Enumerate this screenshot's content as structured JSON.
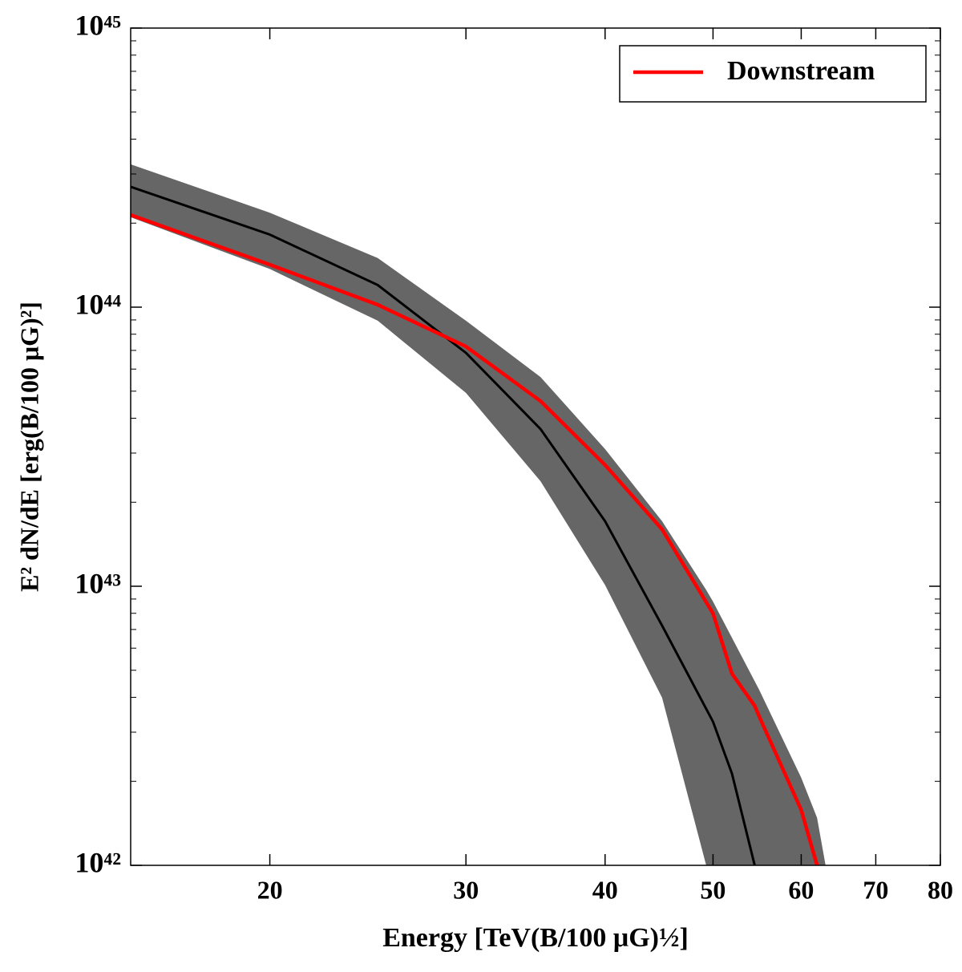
{
  "chart_data": {
    "type": "line",
    "xlabel": "Energy [TeV(B/100 μG)½]",
    "ylabel": "E² dN/dE [erg(B/100 μG)²]",
    "xlog": true,
    "ylog": true,
    "grid": false,
    "legend": "upper right",
    "xlim": [
      15,
      80
    ],
    "xticks": [
      20,
      30,
      40,
      50,
      60,
      70,
      80
    ],
    "ylim": [
      1e+42,
      1e+45
    ],
    "yticks": [
      {
        "value": 1e+42,
        "label": "10⁴²"
      },
      {
        "value": 1e+43,
        "label": "10⁴³"
      },
      {
        "value": 1e+44,
        "label": "10⁴⁴"
      },
      {
        "value": 1e+45,
        "label": "10⁴⁵"
      }
    ],
    "yminorticks": [
      2e+42,
      3e+42,
      4e+42,
      5e+42,
      6e+42,
      7e+42,
      8e+42,
      9e+42,
      2e+43,
      3e+43,
      4e+43,
      5e+43,
      6e+43,
      7e+43,
      8e+43,
      9e+43,
      2e+44,
      3e+44,
      4e+44,
      5e+44,
      6e+44,
      7e+44,
      8e+44,
      9e+44
    ],
    "band": {
      "color": "#666666",
      "x": [
        15,
        20,
        25,
        30,
        35,
        40,
        45,
        49.3,
        50,
        55,
        60,
        62,
        63.1
      ],
      "upper": [
        3.25e+44,
        2.18e+44,
        1.5e+44,
        8.94e+43,
        5.62e+43,
        3.1e+43,
        1.71e+43,
        9.7e+42,
        8.81e+42,
        4.26e+42,
        2.06e+42,
        1.48e+42,
        1e+42
      ],
      "lower": [
        2.1e+44,
        1.37e+44,
        8.94e+43,
        4.93e+43,
        2.38e+43,
        1.01e+43,
        3.99e+42,
        1e+42,
        null,
        null,
        null,
        null,
        null
      ]
    },
    "x": [
      15,
      20,
      25,
      30,
      35,
      40,
      45,
      50,
      52,
      54.5,
      55,
      60,
      62
    ],
    "series": [
      {
        "color": "#000000",
        "values": [
          2.7e+44,
          1.82e+44,
          1.2e+44,
          6.86e+43,
          3.66e+43,
          1.71e+43,
          7.23e+42,
          3.27e+42,
          2.13e+42,
          1e+42,
          null,
          null,
          null
        ]
      },
      {
        "name": "Downstream",
        "color": "#ff0000",
        "values": [
          2.14e+44,
          1.42e+44,
          1.02e+44,
          7.23e+43,
          4.61e+43,
          2.72e+43,
          1.6e+43,
          7.99e+42,
          4.86e+42,
          3.73e+42,
          3.42e+42,
          1.58e+42,
          1e+42
        ]
      }
    ]
  }
}
